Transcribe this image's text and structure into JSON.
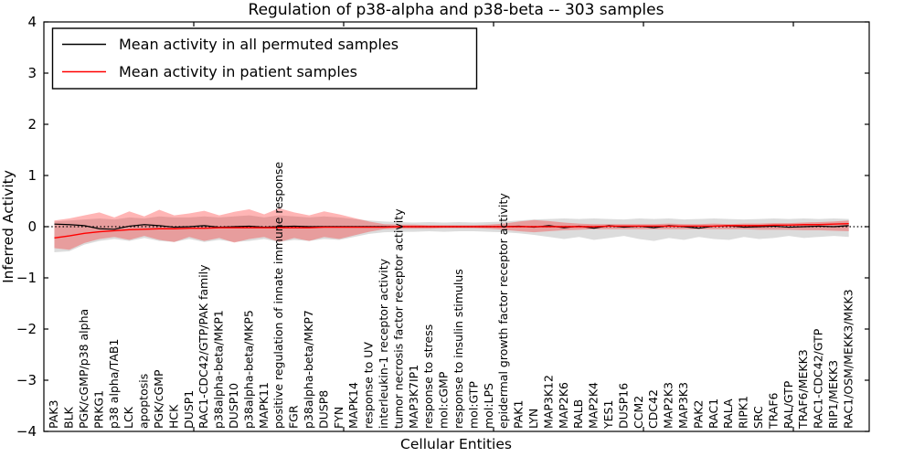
{
  "chart_data": {
    "type": "line",
    "title": "Regulation of p38-alpha and p38-beta -- 303 samples",
    "xlabel": "Cellular Entities",
    "ylabel": "Inferred Activity",
    "ylim": [
      -4,
      4
    ],
    "yticks": [
      -4,
      -3,
      -2,
      -1,
      0,
      1,
      2,
      3,
      4
    ],
    "xticks_units": [
      10,
      20,
      30,
      40,
      50
    ],
    "grid": false,
    "legend_position": "upper left",
    "zero_line": {
      "value": 0,
      "color": "#000000",
      "style": "dotted"
    },
    "categories": [
      "PAK3",
      "BLK",
      "PGK/cGMP/p38 alpha",
      "PRKG1",
      "p38 alpha/TAB1",
      "LCK",
      "apoptosis",
      "PGK/cGMP",
      "HCK",
      "DUSP1",
      "RAC1-CDC42/GTP/PAK family",
      "p38alpha-beta/MKP1",
      "DUSP10",
      "p38alpha-beta/MKP5",
      "MAPK11",
      "positive regulation of innate immune response",
      "FGR",
      "p38alpha-beta/MKP7",
      "DUSP8",
      "FYN",
      "MAPK14",
      "response to UV",
      "interleukin-1 receptor activity",
      "tumor necrosis factor receptor activity",
      "MAP3K7IP1",
      "response to stress",
      "mol:cGMP",
      "response to insulin stimulus",
      "mol:GTP",
      "mol:LPS",
      "epidermal growth factor receptor activity",
      "PAK1",
      "LYN",
      "MAP3K12",
      "MAP2K6",
      "RALB",
      "MAP2K4",
      "YES1",
      "DUSP16",
      "CCM2",
      "CDC42",
      "MAP2K3",
      "MAP3K3",
      "PAK2",
      "RAC1",
      "RALA",
      "RIPK1",
      "SRC",
      "TRAF6",
      "RAL/GTP",
      "TRAF6/MEKK3",
      "RAC1-CDC42/GTP",
      "RIP1/MEKK3",
      "RAC1/OSM/MEKK3/MKK3"
    ],
    "series": [
      {
        "name": "Mean activity in all permuted samples",
        "color": "#000000",
        "values": [
          0.05,
          0.04,
          0.02,
          -0.04,
          -0.05,
          0.01,
          0.04,
          0.02,
          -0.01,
          0.0,
          0.02,
          -0.01,
          0.0,
          0.01,
          -0.01,
          0.0,
          0.01,
          0.0,
          0.0,
          0.0,
          0.0,
          0.0,
          0.0,
          0.0,
          0.0,
          0.0,
          0.0,
          0.0,
          0.0,
          0.0,
          0.0,
          0.01,
          -0.01,
          0.02,
          -0.02,
          0.01,
          -0.03,
          0.02,
          -0.01,
          0.01,
          -0.02,
          0.02,
          0.0,
          -0.03,
          0.01,
          0.02,
          -0.01,
          0.0,
          0.01,
          -0.01,
          0.0,
          0.01,
          0.0,
          0.02
        ]
      },
      {
        "name": "Mean activity in patient samples",
        "color": "#ff0000",
        "values": [
          -0.22,
          -0.18,
          -0.13,
          -0.1,
          -0.08,
          -0.06,
          -0.05,
          -0.04,
          -0.04,
          -0.03,
          -0.03,
          -0.02,
          -0.02,
          -0.02,
          -0.02,
          -0.02,
          -0.02,
          -0.02,
          -0.01,
          -0.01,
          -0.01,
          -0.01,
          -0.01,
          0.0,
          0.0,
          0.0,
          0.0,
          0.0,
          0.0,
          0.0,
          0.0,
          0.0,
          0.0,
          0.0,
          0.0,
          0.0,
          0.0,
          0.01,
          0.01,
          0.01,
          0.01,
          0.01,
          0.01,
          0.01,
          0.01,
          0.02,
          0.02,
          0.02,
          0.03,
          0.03,
          0.04,
          0.04,
          0.05,
          0.06
        ]
      }
    ],
    "bands": [
      {
        "name": "permuted-samples-std-band",
        "color": "#8a8a8a",
        "opacity": 0.3,
        "upper": [
          0.1,
          0.12,
          0.14,
          0.16,
          0.14,
          0.18,
          0.16,
          0.2,
          0.18,
          0.18,
          0.2,
          0.18,
          0.2,
          0.22,
          0.18,
          0.22,
          0.2,
          0.18,
          0.2,
          0.18,
          0.15,
          0.12,
          0.1,
          0.09,
          0.08,
          0.09,
          0.08,
          0.09,
          0.08,
          0.09,
          0.1,
          0.12,
          0.14,
          0.15,
          0.16,
          0.15,
          0.16,
          0.15,
          0.14,
          0.16,
          0.15,
          0.16,
          0.14,
          0.15,
          0.16,
          0.15,
          0.14,
          0.15,
          0.16,
          0.15,
          0.16,
          0.15,
          0.16,
          0.15
        ],
        "lower": [
          -0.5,
          -0.48,
          -0.35,
          -0.28,
          -0.24,
          -0.28,
          -0.22,
          -0.28,
          -0.3,
          -0.24,
          -0.3,
          -0.26,
          -0.3,
          -0.28,
          -0.24,
          -0.3,
          -0.26,
          -0.28,
          -0.24,
          -0.26,
          -0.2,
          -0.14,
          -0.11,
          -0.1,
          -0.1,
          -0.09,
          -0.1,
          -0.09,
          -0.09,
          -0.1,
          -0.11,
          -0.13,
          -0.16,
          -0.2,
          -0.24,
          -0.2,
          -0.26,
          -0.22,
          -0.18,
          -0.24,
          -0.28,
          -0.22,
          -0.26,
          -0.2,
          -0.24,
          -0.26,
          -0.2,
          -0.24,
          -0.22,
          -0.18,
          -0.22,
          -0.2,
          -0.18,
          -0.2
        ]
      },
      {
        "name": "patient-samples-std-band",
        "color": "#ff1a1a",
        "opacity": 0.32,
        "upper": [
          0.12,
          0.16,
          0.22,
          0.28,
          0.18,
          0.3,
          0.2,
          0.33,
          0.22,
          0.26,
          0.31,
          0.22,
          0.29,
          0.34,
          0.24,
          0.36,
          0.28,
          0.22,
          0.3,
          0.24,
          0.17,
          0.1,
          0.05,
          0.04,
          0.04,
          0.03,
          0.03,
          0.03,
          0.03,
          0.04,
          0.06,
          0.1,
          0.13,
          0.11,
          0.08,
          0.06,
          0.05,
          0.05,
          0.05,
          0.05,
          0.05,
          0.06,
          0.05,
          0.05,
          0.06,
          0.05,
          0.06,
          0.06,
          0.07,
          0.07,
          0.08,
          0.09,
          0.1,
          0.12
        ],
        "lower": [
          -0.42,
          -0.45,
          -0.32,
          -0.24,
          -0.2,
          -0.26,
          -0.18,
          -0.26,
          -0.3,
          -0.2,
          -0.28,
          -0.22,
          -0.31,
          -0.24,
          -0.2,
          -0.3,
          -0.22,
          -0.28,
          -0.2,
          -0.24,
          -0.17,
          -0.1,
          -0.05,
          -0.04,
          -0.04,
          -0.04,
          -0.03,
          -0.03,
          -0.03,
          -0.04,
          -0.06,
          -0.09,
          -0.11,
          -0.09,
          -0.07,
          -0.06,
          -0.05,
          -0.05,
          -0.05,
          -0.05,
          -0.05,
          -0.05,
          -0.05,
          -0.05,
          -0.05,
          -0.05,
          -0.05,
          -0.06,
          -0.06,
          -0.06,
          -0.07,
          -0.07,
          -0.08,
          -0.09
        ]
      }
    ],
    "legend": {
      "entries": [
        {
          "label": "Mean activity in all permuted samples",
          "color": "#000000"
        },
        {
          "label": "Mean activity in patient samples",
          "color": "#ff0000"
        }
      ]
    }
  }
}
